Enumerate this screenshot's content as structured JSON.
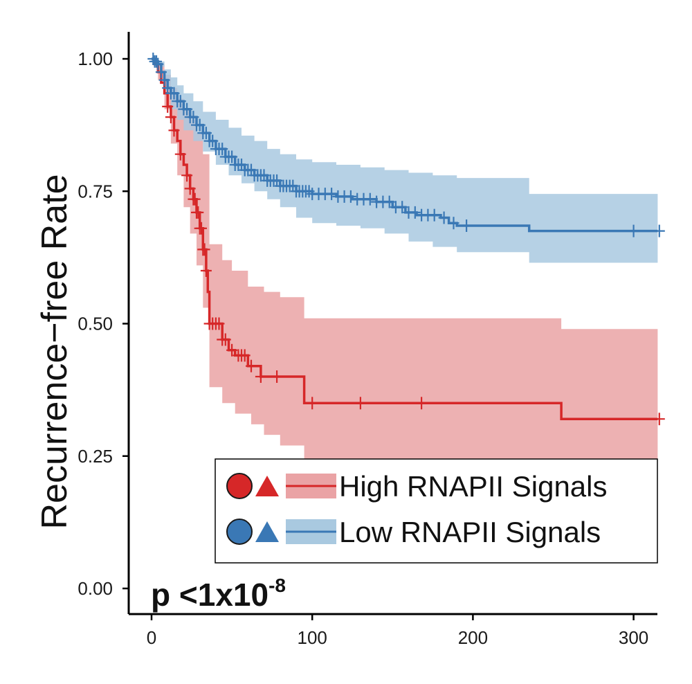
{
  "chart_data": {
    "type": "line",
    "subtype": "kaplan-meier",
    "xlabel": "",
    "ylabel": "Recurrence−free Rate",
    "xlim": [
      -18,
      315
    ],
    "ylim": [
      -0.05,
      1.05
    ],
    "x_ticks": [
      0,
      100,
      200,
      300
    ],
    "x_tick_labels": [
      "0",
      "100",
      "200",
      "300"
    ],
    "y_ticks": [
      0,
      0.25,
      0.5,
      0.75,
      1.0
    ],
    "y_tick_labels": [
      "0.00",
      "0.25",
      "0.50",
      "0.75",
      "1.00"
    ],
    "grid": false,
    "legend_position": "bottom-right",
    "annotation": {
      "prefix": "p <1x10",
      "exponent": "-8"
    },
    "series": [
      {
        "name": "High RNAPII Signals",
        "color": "#d62728",
        "band_color": "#eaa3a5",
        "steps": [
          [
            0,
            1.0
          ],
          [
            2,
            0.99
          ],
          [
            4,
            0.975
          ],
          [
            6,
            0.955
          ],
          [
            8,
            0.935
          ],
          [
            10,
            0.91
          ],
          [
            12,
            0.89
          ],
          [
            14,
            0.865
          ],
          [
            16,
            0.845
          ],
          [
            18,
            0.82
          ],
          [
            20,
            0.8
          ],
          [
            22,
            0.78
          ],
          [
            24,
            0.755
          ],
          [
            26,
            0.735
          ],
          [
            28,
            0.71
          ],
          [
            30,
            0.68
          ],
          [
            32,
            0.64
          ],
          [
            34,
            0.6
          ],
          [
            35,
            0.56
          ],
          [
            36,
            0.5
          ],
          [
            44,
            0.47
          ],
          [
            48,
            0.45
          ],
          [
            52,
            0.44
          ],
          [
            60,
            0.42
          ],
          [
            68,
            0.4
          ],
          [
            95,
            0.35
          ],
          [
            255,
            0.32
          ],
          [
            315,
            0.32
          ]
        ],
        "upper": [
          [
            0,
            1.0
          ],
          [
            4,
            0.99
          ],
          [
            8,
            0.97
          ],
          [
            12,
            0.945
          ],
          [
            16,
            0.925
          ],
          [
            20,
            0.905
          ],
          [
            24,
            0.885
          ],
          [
            28,
            0.86
          ],
          [
            32,
            0.82
          ],
          [
            36,
            0.65
          ],
          [
            44,
            0.62
          ],
          [
            50,
            0.6
          ],
          [
            60,
            0.57
          ],
          [
            70,
            0.56
          ],
          [
            80,
            0.55
          ],
          [
            95,
            0.51
          ],
          [
            255,
            0.49
          ],
          [
            315,
            0.49
          ]
        ],
        "lower": [
          [
            0,
            1.0
          ],
          [
            4,
            0.96
          ],
          [
            8,
            0.905
          ],
          [
            12,
            0.84
          ],
          [
            16,
            0.78
          ],
          [
            20,
            0.72
          ],
          [
            24,
            0.67
          ],
          [
            28,
            0.61
          ],
          [
            32,
            0.53
          ],
          [
            36,
            0.38
          ],
          [
            44,
            0.35
          ],
          [
            52,
            0.33
          ],
          [
            62,
            0.31
          ],
          [
            70,
            0.29
          ],
          [
            80,
            0.27
          ],
          [
            95,
            0.24
          ],
          [
            255,
            0.21
          ],
          [
            315,
            0.21
          ]
        ],
        "censor_x": [
          10,
          12,
          14,
          18,
          22,
          24,
          26,
          27,
          28,
          29,
          30,
          31,
          32,
          33,
          34,
          36,
          38,
          40,
          42,
          44,
          46,
          50,
          54,
          56,
          58,
          62,
          68,
          78,
          100,
          130,
          168,
          316
        ]
      },
      {
        "name": "Low RNAPII Signals",
        "color": "#3a78b5",
        "band_color": "#a9c9e0",
        "steps": [
          [
            0,
            1.0
          ],
          [
            2,
            0.995
          ],
          [
            4,
            0.99
          ],
          [
            6,
            0.975
          ],
          [
            8,
            0.96
          ],
          [
            10,
            0.945
          ],
          [
            12,
            0.935
          ],
          [
            16,
            0.92
          ],
          [
            20,
            0.905
          ],
          [
            24,
            0.89
          ],
          [
            28,
            0.875
          ],
          [
            32,
            0.86
          ],
          [
            36,
            0.845
          ],
          [
            40,
            0.83
          ],
          [
            46,
            0.815
          ],
          [
            52,
            0.8
          ],
          [
            58,
            0.79
          ],
          [
            64,
            0.78
          ],
          [
            72,
            0.77
          ],
          [
            80,
            0.76
          ],
          [
            90,
            0.75
          ],
          [
            100,
            0.745
          ],
          [
            115,
            0.74
          ],
          [
            125,
            0.735
          ],
          [
            140,
            0.73
          ],
          [
            150,
            0.72
          ],
          [
            158,
            0.71
          ],
          [
            165,
            0.705
          ],
          [
            180,
            0.7
          ],
          [
            185,
            0.69
          ],
          [
            190,
            0.685
          ],
          [
            235,
            0.675
          ],
          [
            315,
            0.675
          ]
        ],
        "upper": [
          [
            0,
            1.0
          ],
          [
            4,
            0.995
          ],
          [
            8,
            0.98
          ],
          [
            12,
            0.965
          ],
          [
            16,
            0.95
          ],
          [
            20,
            0.935
          ],
          [
            26,
            0.92
          ],
          [
            32,
            0.9
          ],
          [
            40,
            0.885
          ],
          [
            48,
            0.87
          ],
          [
            56,
            0.855
          ],
          [
            64,
            0.845
          ],
          [
            72,
            0.83
          ],
          [
            80,
            0.82
          ],
          [
            90,
            0.81
          ],
          [
            100,
            0.805
          ],
          [
            115,
            0.8
          ],
          [
            130,
            0.795
          ],
          [
            145,
            0.79
          ],
          [
            160,
            0.785
          ],
          [
            175,
            0.78
          ],
          [
            190,
            0.775
          ],
          [
            235,
            0.745
          ],
          [
            315,
            0.745
          ]
        ],
        "lower": [
          [
            0,
            1.0
          ],
          [
            4,
            0.985
          ],
          [
            8,
            0.94
          ],
          [
            12,
            0.905
          ],
          [
            16,
            0.885
          ],
          [
            20,
            0.865
          ],
          [
            26,
            0.845
          ],
          [
            32,
            0.825
          ],
          [
            40,
            0.8
          ],
          [
            48,
            0.78
          ],
          [
            56,
            0.765
          ],
          [
            64,
            0.75
          ],
          [
            72,
            0.735
          ],
          [
            80,
            0.72
          ],
          [
            90,
            0.7
          ],
          [
            100,
            0.69
          ],
          [
            115,
            0.685
          ],
          [
            130,
            0.68
          ],
          [
            145,
            0.67
          ],
          [
            160,
            0.655
          ],
          [
            175,
            0.645
          ],
          [
            190,
            0.635
          ],
          [
            235,
            0.615
          ],
          [
            315,
            0.615
          ]
        ],
        "censor_x": [
          1,
          2,
          3,
          4,
          6,
          8,
          10,
          12,
          14,
          16,
          18,
          20,
          22,
          24,
          26,
          28,
          30,
          32,
          34,
          36,
          38,
          40,
          42,
          44,
          46,
          48,
          50,
          52,
          54,
          56,
          58,
          60,
          62,
          64,
          66,
          68,
          70,
          72,
          74,
          76,
          78,
          80,
          82,
          84,
          86,
          88,
          90,
          92,
          94,
          96,
          98,
          100,
          104,
          108,
          112,
          116,
          120,
          124,
          128,
          132,
          136,
          140,
          144,
          148,
          152,
          156,
          160,
          164,
          168,
          172,
          176,
          182,
          188,
          196,
          300,
          316
        ]
      }
    ]
  }
}
